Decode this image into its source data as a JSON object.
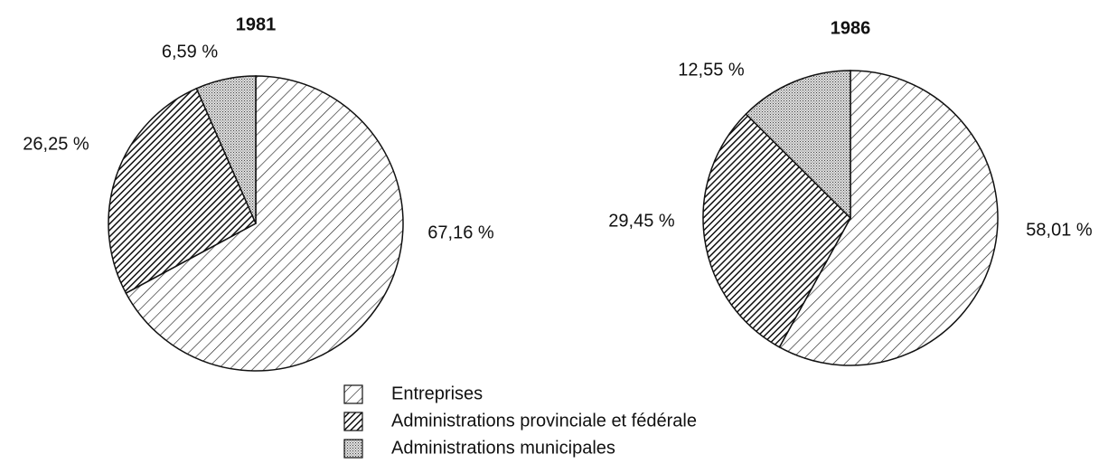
{
  "chart_data": [
    {
      "type": "pie",
      "title": "1981",
      "categories": [
        "Entreprises",
        "Administrations provinciale et fédérale",
        "Administrations municipales"
      ],
      "values": [
        67.16,
        26.25,
        6.59
      ],
      "value_labels": [
        "67,16 %",
        "26,25 %",
        "6,59 %"
      ],
      "patterns": [
        "hatch",
        "dense-hatch",
        "dots"
      ]
    },
    {
      "type": "pie",
      "title": "1986",
      "values": [
        58.01,
        29.45,
        12.55
      ],
      "value_labels": [
        "58,01 %",
        "29,45 %",
        "12,55 %"
      ],
      "patterns": [
        "hatch",
        "dense-hatch",
        "dots"
      ]
    }
  ]
}
